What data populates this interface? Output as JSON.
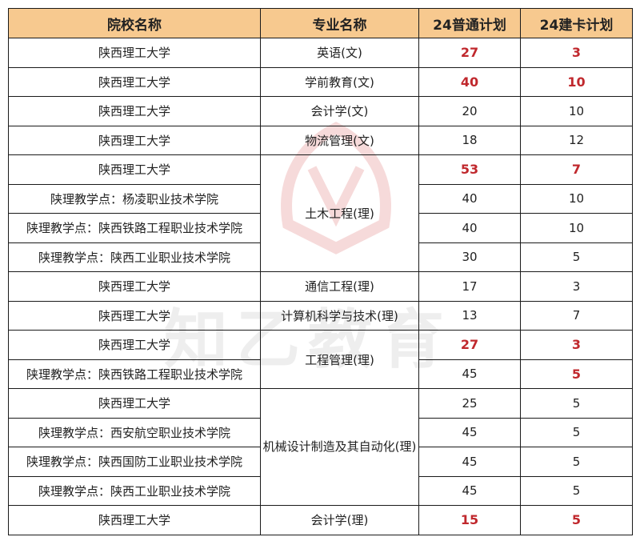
{
  "headers": [
    "院校名称",
    "专业名称",
    "24普通计划",
    "24建卡计划"
  ],
  "watermark_text": "知乙教育",
  "colors": {
    "header_bg": "#f7c98f",
    "highlight": "#c0282d",
    "border": "#1a1a1a",
    "logo": "#d33a3a"
  },
  "rows": [
    {
      "school": "陕西理工大学",
      "major": "英语(文)",
      "normal": "27",
      "card": "3"
    },
    {
      "school": "陕西理工大学",
      "major": "学前教育(文)",
      "normal": "40",
      "card": "10"
    },
    {
      "school": "陕西理工大学",
      "major": "会计学(文)",
      "normal": "20",
      "card": "10"
    },
    {
      "school": "陕西理工大学",
      "major": "物流管理(文)",
      "normal": "18",
      "card": "12"
    },
    {
      "school": "陕西理工大学",
      "major": "土木工程(理)",
      "normal": "53",
      "card": "7"
    },
    {
      "school": "陕理教学点：杨凌职业技术学院",
      "major": "",
      "normal": "40",
      "card": "10"
    },
    {
      "school": "陕理教学点：陕西铁路工程职业技术学院",
      "major": "",
      "normal": "40",
      "card": "10"
    },
    {
      "school": "陕理教学点：陕西工业职业技术学院",
      "major": "",
      "normal": "30",
      "card": "5"
    },
    {
      "school": "陕西理工大学",
      "major": "通信工程(理)",
      "normal": "17",
      "card": "3"
    },
    {
      "school": "陕西理工大学",
      "major": "计算机科学与技术(理)",
      "normal": "13",
      "card": "7"
    },
    {
      "school": "陕西理工大学",
      "major": "工程管理(理)",
      "normal": "27",
      "card": "3"
    },
    {
      "school": "陕理教学点：陕西铁路工程职业技术学院",
      "major": "",
      "normal": "45",
      "card": "5"
    },
    {
      "school": "陕西理工大学",
      "major": "机械设计制造及其自动化(理)",
      "normal": "25",
      "card": "5"
    },
    {
      "school": "陕理教学点：西安航空职业技术学院",
      "major": "",
      "normal": "45",
      "card": "5"
    },
    {
      "school": "陕理教学点：陕西国防工业职业技术学院",
      "major": "",
      "normal": "45",
      "card": "5"
    },
    {
      "school": "陕理教学点：陕西工业职业技术学院",
      "major": "",
      "normal": "45",
      "card": "5"
    },
    {
      "school": "陕西理工大学",
      "major": "会计学(理)",
      "normal": "15",
      "card": "5"
    }
  ]
}
